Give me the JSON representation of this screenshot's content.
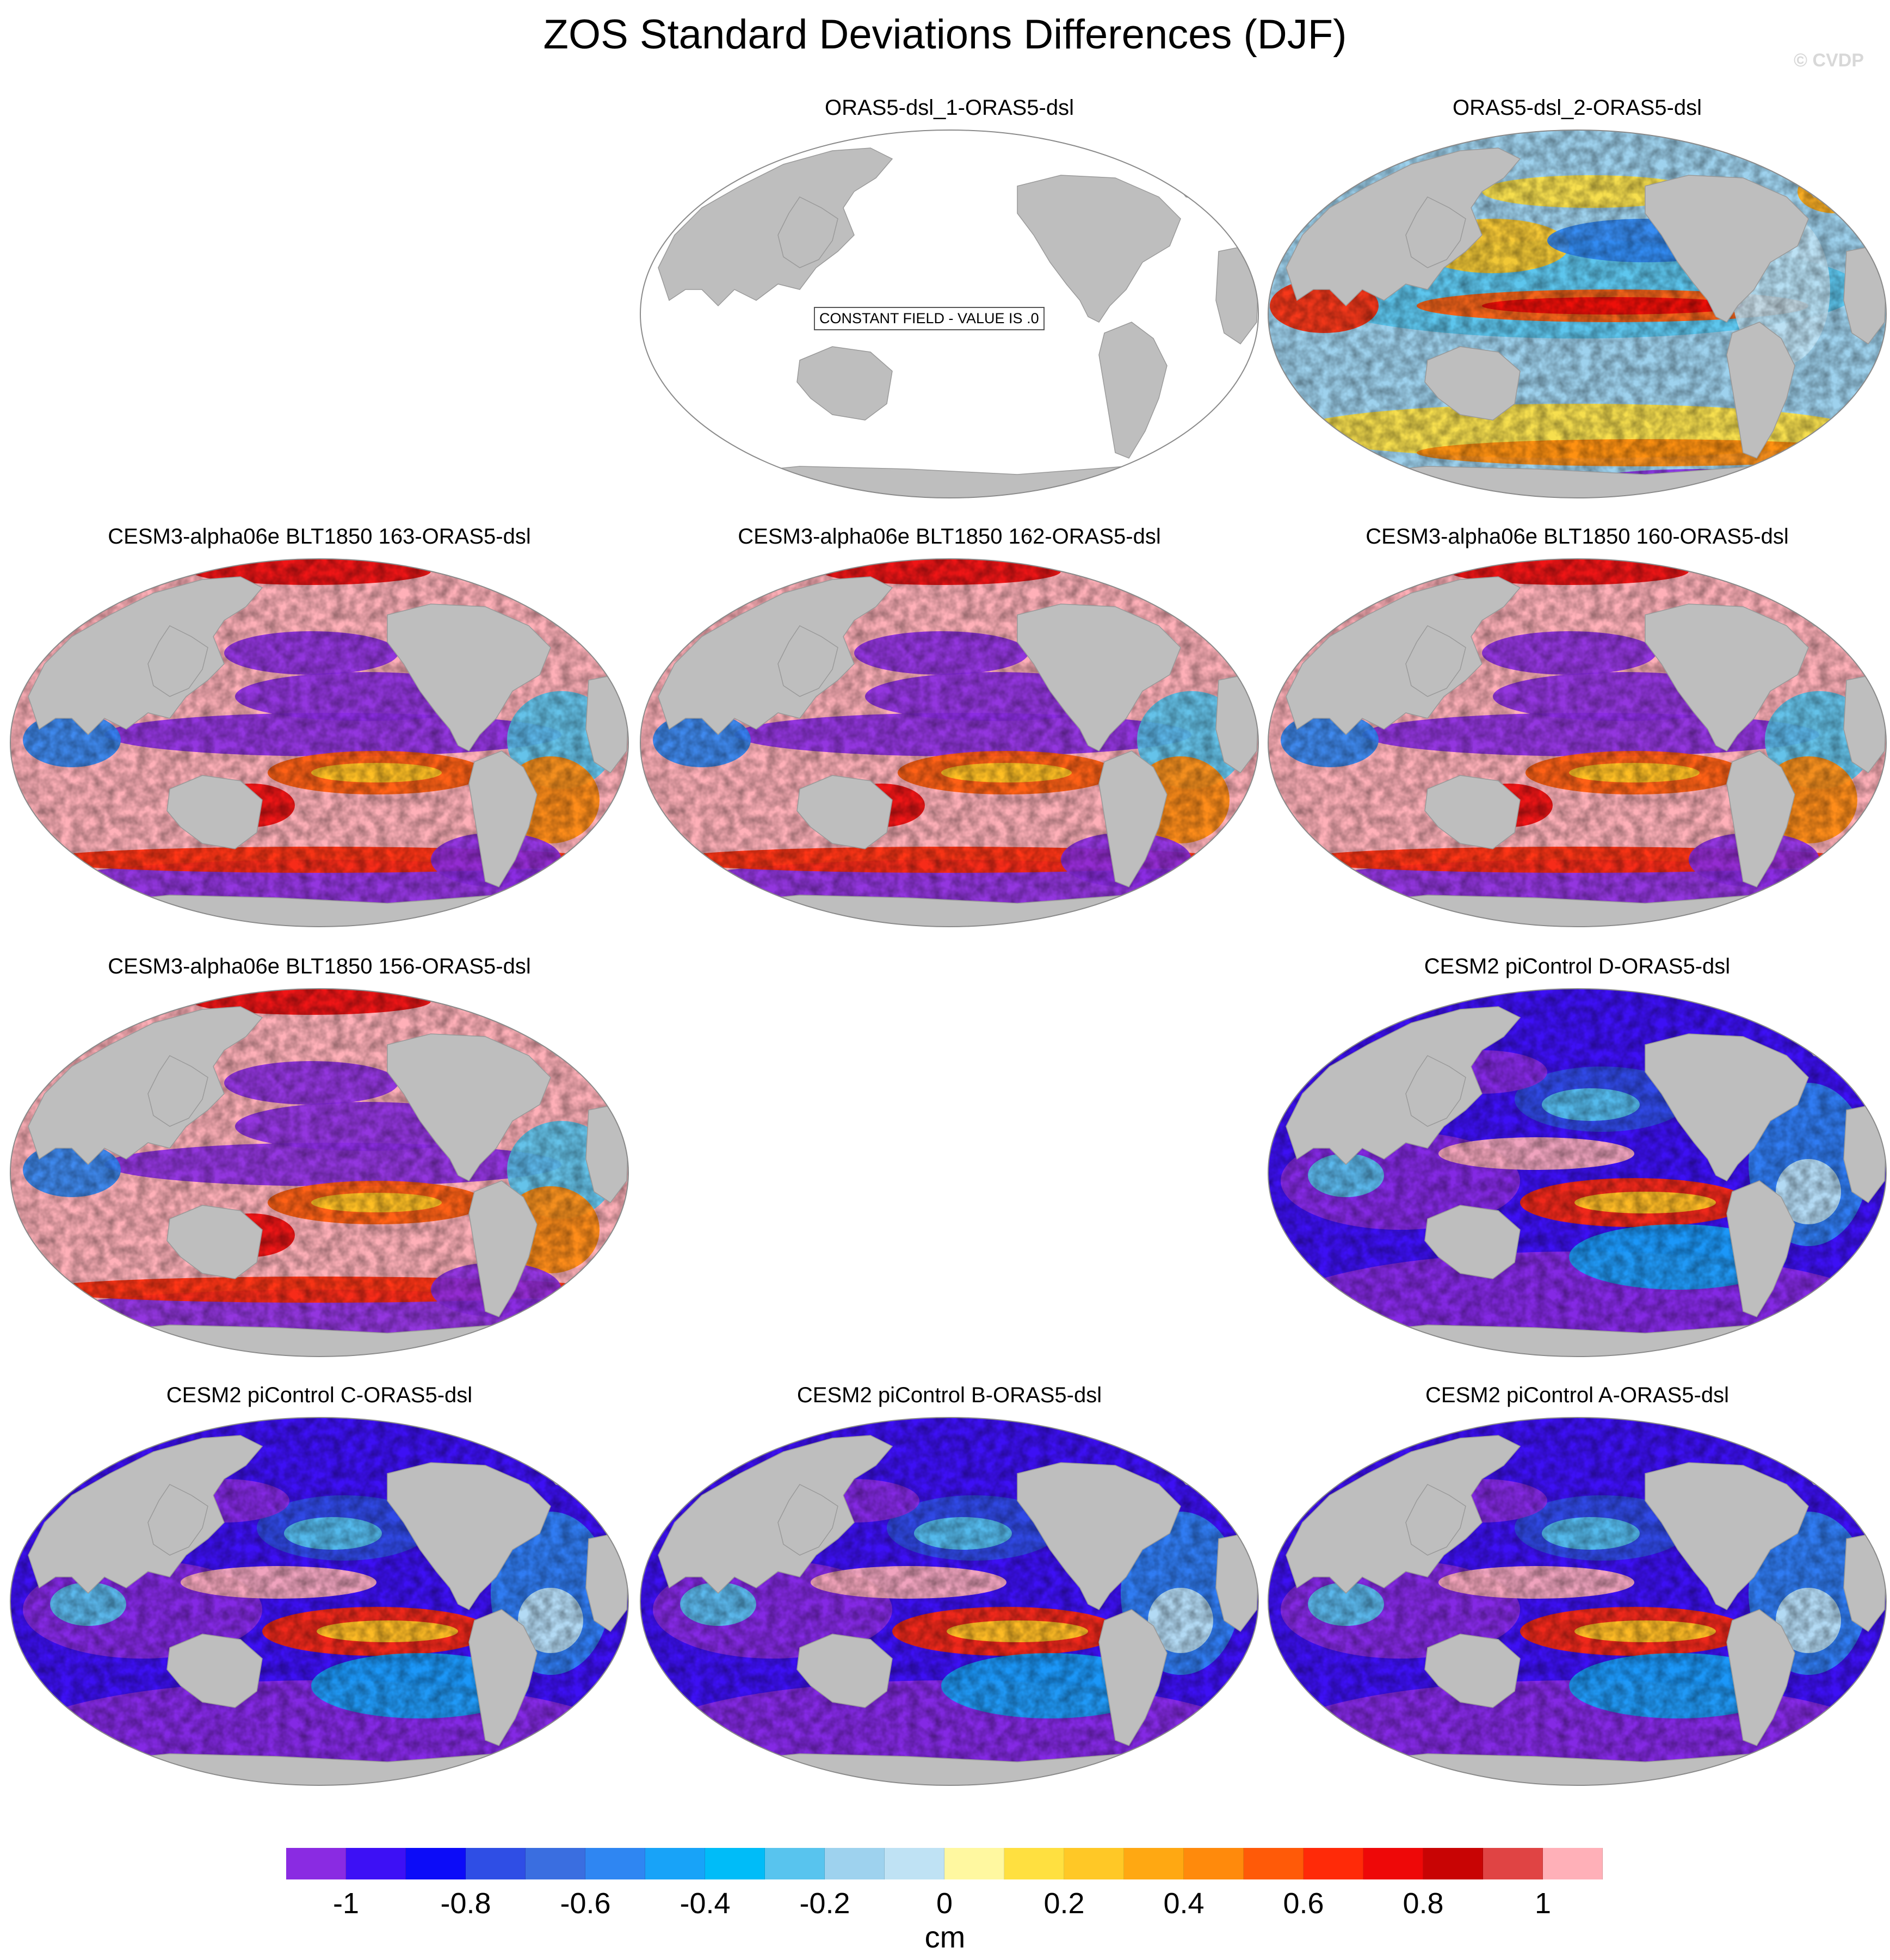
{
  "title": "ZOS Standard Deviations Differences (DJF)",
  "copyright": "© CVDP",
  "panels": [
    {
      "title": "ORAS5-dsl_1-ORAS5-dsl",
      "type": "constant",
      "label": "CONSTANT FIELD - VALUE IS .0"
    },
    {
      "title": "ORAS5-dsl_2-ORAS5-dsl",
      "type": "mixed"
    },
    {
      "title": "CESM3-alpha06e BLT1850 163-ORAS5-dsl",
      "type": "cesm3"
    },
    {
      "title": "CESM3-alpha06e BLT1850 162-ORAS5-dsl",
      "type": "cesm3"
    },
    {
      "title": "CESM3-alpha06e BLT1850 160-ORAS5-dsl",
      "type": "cesm3"
    },
    {
      "title": "CESM3-alpha06e BLT1850 156-ORAS5-dsl",
      "type": "cesm3"
    },
    {
      "title": "CESM2 piControl D-ORAS5-dsl",
      "type": "cesm2"
    },
    {
      "title": "CESM2 piControl C-ORAS5-dsl",
      "type": "cesm2"
    },
    {
      "title": "CESM2 piControl B-ORAS5-dsl",
      "type": "cesm2"
    },
    {
      "title": "CESM2 piControl A-ORAS5-dsl",
      "type": "cesm2"
    }
  ],
  "colorbar": {
    "units": "cm",
    "colors": [
      "#8a2be2",
      "#3d10f5",
      "#0c0cf8",
      "#2f4ee5",
      "#3a6ee0",
      "#2f86f2",
      "#18a3f8",
      "#00bcf8",
      "#58c4ee",
      "#9ed2ee",
      "#bfe2f4",
      "#fff8a0",
      "#ffe040",
      "#ffc826",
      "#ffa812",
      "#ff8a0c",
      "#ff5a08",
      "#ff2a08",
      "#ee0808",
      "#c80404",
      "#e04444",
      "#ffb0b8"
    ],
    "tick_labels": [
      "-1",
      "-0.8",
      "-0.6",
      "-0.4",
      "-0.2",
      "0",
      "0.2",
      "0.4",
      "0.6",
      "0.8",
      "1"
    ]
  },
  "colors": {
    "land": "#bebebe",
    "ocean_constant": "#ffffff"
  }
}
